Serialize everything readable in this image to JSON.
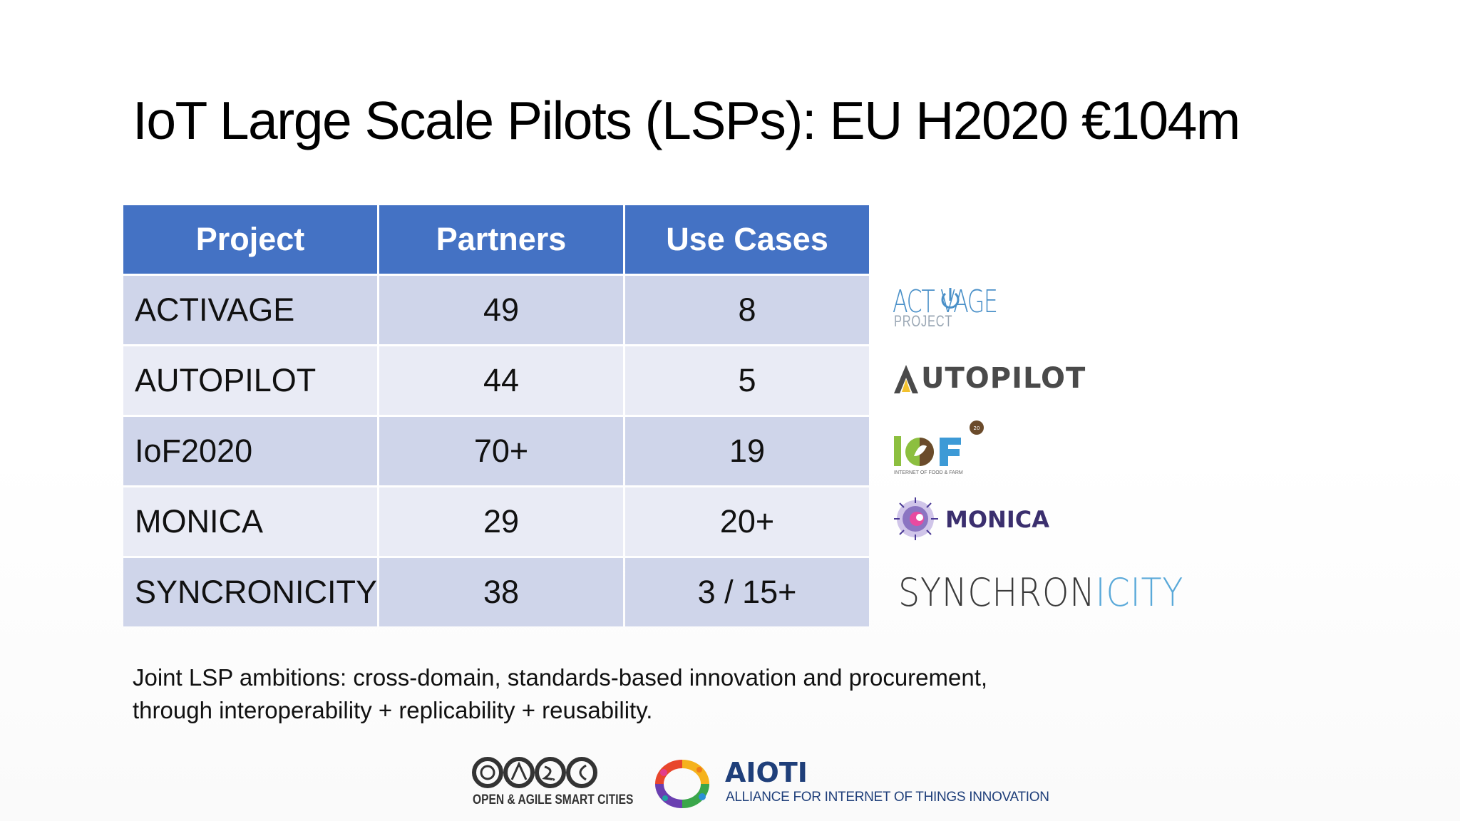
{
  "slide": {
    "title": "IoT Large Scale Pilots (LSPs): EU H2020 €104m",
    "table": {
      "headers": [
        "Project",
        "Partners",
        "Use Cases"
      ],
      "rows": [
        {
          "project": "ACTIVAGE",
          "partners": "49",
          "use_cases": "8"
        },
        {
          "project": "AUTOPILOT",
          "partners": "44",
          "use_cases": "5"
        },
        {
          "project": "IoF2020",
          "partners": "70+",
          "use_cases": "19"
        },
        {
          "project": "MONICA",
          "partners": "29",
          "use_cases": "20+"
        },
        {
          "project": "SYNCRONICITY",
          "partners": "38",
          "use_cases": "3 / 15+"
        }
      ]
    },
    "logos": {
      "activage": {
        "main": "ACT VAGE",
        "sub": "PROJECT"
      },
      "autopilot": {
        "text": "UTOPILOT"
      },
      "iof": {
        "text": "I F",
        "sub": "INTERNET OF FOOD & FARM"
      },
      "monica": {
        "text": "MONICA"
      },
      "synchronicity": {
        "head": "SYNCHRON",
        "tail": "ICITY"
      },
      "oasc": {
        "caption": "OPEN & AGILE SMART CITIES"
      },
      "aioti": {
        "name": "AIOTI",
        "sub": "ALLIANCE FOR INTERNET OF THINGS INNOVATION"
      }
    },
    "footnote": {
      "line1": "Joint LSP ambitions: cross-domain, standards-based innovation and procurement,",
      "line2": "through interoperability + replicability + reusability."
    },
    "colors": {
      "header_blue": "#4472c4",
      "row_dark": "#cfd5ea",
      "row_light": "#e9ebf5"
    }
  }
}
